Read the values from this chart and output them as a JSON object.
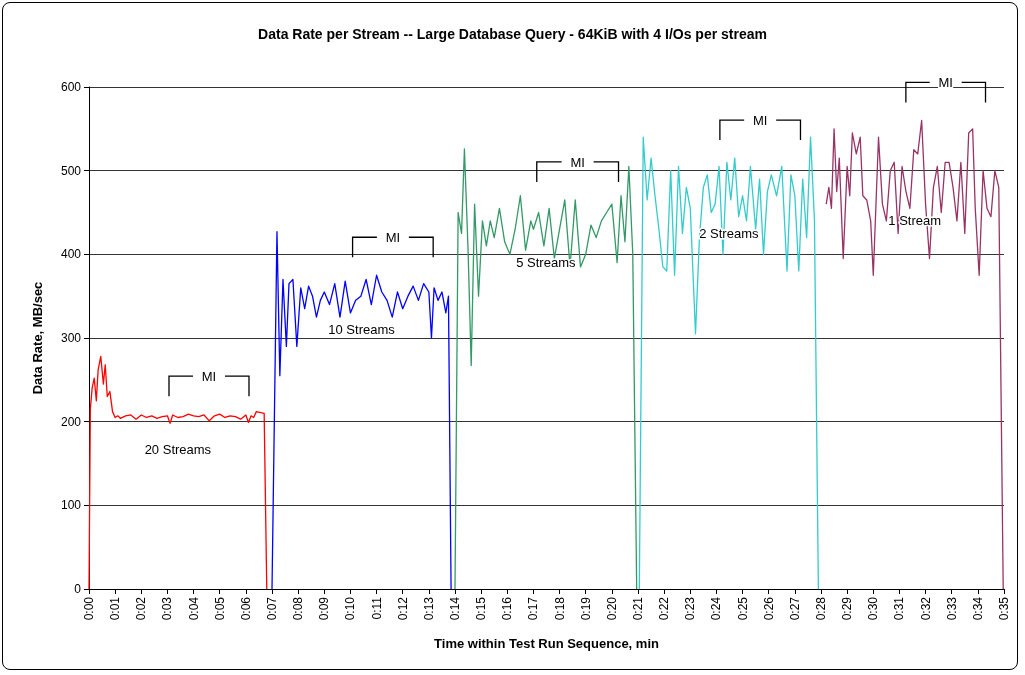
{
  "chart_data": {
    "type": "line",
    "title": "Data Rate per Stream -- Large Database Query - 64KiB with 4 I/Os per stream",
    "xlabel": "Time within Test Run Sequence, min",
    "ylabel": "Data Rate, MB/sec",
    "xlim": [
      0,
      35
    ],
    "ylim": [
      0,
      600
    ],
    "yticks": [
      0,
      100,
      200,
      300,
      400,
      500,
      600
    ],
    "xticks": [
      {
        "value": 0,
        "label": "0:00"
      },
      {
        "value": 1,
        "label": "0:01"
      },
      {
        "value": 2,
        "label": "0:02"
      },
      {
        "value": 3,
        "label": "0:03"
      },
      {
        "value": 4,
        "label": "0:04"
      },
      {
        "value": 5,
        "label": "0:05"
      },
      {
        "value": 6,
        "label": "0:06"
      },
      {
        "value": 7,
        "label": "0:07"
      },
      {
        "value": 8,
        "label": "0:08"
      },
      {
        "value": 9,
        "label": "0:09"
      },
      {
        "value": 10,
        "label": "0:10"
      },
      {
        "value": 11,
        "label": "0:11"
      },
      {
        "value": 12,
        "label": "0:12"
      },
      {
        "value": 13,
        "label": "0:13"
      },
      {
        "value": 14,
        "label": "0:14"
      },
      {
        "value": 15,
        "label": "0:15"
      },
      {
        "value": 16,
        "label": "0:16"
      },
      {
        "value": 17,
        "label": "0:17"
      },
      {
        "value": 18,
        "label": "0:18"
      },
      {
        "value": 19,
        "label": "0:19"
      },
      {
        "value": 20,
        "label": "0:20"
      },
      {
        "value": 21,
        "label": "0:21"
      },
      {
        "value": 22,
        "label": "0:22"
      },
      {
        "value": 23,
        "label": "0:23"
      },
      {
        "value": 24,
        "label": "0:24"
      },
      {
        "value": 25,
        "label": "0:25"
      },
      {
        "value": 26,
        "label": "0:26"
      },
      {
        "value": 27,
        "label": "0:27"
      },
      {
        "value": 28,
        "label": "0:28"
      },
      {
        "value": 29,
        "label": "0:29"
      },
      {
        "value": 30,
        "label": "0:30"
      },
      {
        "value": 31,
        "label": "0:31"
      },
      {
        "value": 32,
        "label": "0:32"
      },
      {
        "value": 33,
        "label": "0:33"
      },
      {
        "value": 34,
        "label": "0:34"
      },
      {
        "value": 35,
        "label": "0:35"
      }
    ],
    "grid": "y",
    "legend": false,
    "marker": "none",
    "line_style": "solid",
    "series": [
      {
        "name": "20 Streams",
        "color": "#ff0000",
        "x": [
          0,
          0.05,
          0.12,
          0.2,
          0.28,
          0.35,
          0.45,
          0.55,
          0.62,
          0.7,
          0.8,
          0.9,
          1.0,
          1.1,
          1.2,
          1.4,
          1.6,
          1.8,
          2.0,
          2.2,
          2.4,
          2.6,
          2.8,
          3.0,
          3.1,
          3.2,
          3.4,
          3.6,
          3.8,
          4.0,
          4.2,
          4.4,
          4.6,
          4.8,
          5.0,
          5.2,
          5.4,
          5.6,
          5.8,
          6.0,
          6.1,
          6.2,
          6.3,
          6.4,
          6.7,
          6.8
        ],
        "values": [
          0,
          215,
          240,
          252,
          225,
          262,
          278,
          245,
          268,
          230,
          236,
          212,
          205,
          207,
          204,
          207,
          208,
          203,
          208,
          205,
          207,
          204,
          206,
          207,
          198,
          208,
          205,
          206,
          209,
          207,
          206,
          208,
          201,
          207,
          209,
          205,
          207,
          206,
          203,
          208,
          199,
          207,
          205,
          212,
          210,
          0
        ]
      },
      {
        "name": "10 Streams",
        "color": "#0000ff",
        "x": [
          7.0,
          7.19,
          7.3,
          7.42,
          7.55,
          7.65,
          7.8,
          7.95,
          8.1,
          8.25,
          8.4,
          8.55,
          8.7,
          8.85,
          9.0,
          9.2,
          9.4,
          9.6,
          9.8,
          10.0,
          10.2,
          10.4,
          10.6,
          10.8,
          11.0,
          11.2,
          11.4,
          11.6,
          11.8,
          12.0,
          12.2,
          12.4,
          12.6,
          12.8,
          13.0,
          13.1,
          13.2,
          13.35,
          13.5,
          13.65,
          13.75,
          13.85
        ],
        "values": [
          0,
          427,
          255,
          370,
          290,
          365,
          370,
          290,
          360,
          335,
          362,
          350,
          325,
          345,
          355,
          340,
          365,
          325,
          368,
          330,
          345,
          350,
          370,
          340,
          375,
          355,
          345,
          325,
          355,
          335,
          350,
          362,
          345,
          365,
          355,
          300,
          360,
          345,
          355,
          330,
          350,
          0
        ]
      },
      {
        "name": "5 Streams",
        "color": "#339966",
        "x": [
          14.0,
          14.12,
          14.25,
          14.36,
          14.5,
          14.62,
          14.75,
          14.9,
          15.05,
          15.2,
          15.35,
          15.5,
          15.7,
          15.9,
          16.1,
          16.3,
          16.5,
          16.7,
          16.9,
          17.0,
          17.2,
          17.4,
          17.6,
          17.8,
          18.0,
          18.2,
          18.4,
          18.6,
          18.8,
          19.0,
          19.2,
          19.4,
          19.6,
          19.8,
          20.0,
          20.2,
          20.35,
          20.5,
          20.65,
          20.8,
          20.95
        ],
        "values": [
          0,
          450,
          425,
          526,
          405,
          267,
          460,
          350,
          440,
          410,
          440,
          420,
          455,
          415,
          400,
          430,
          470,
          405,
          440,
          430,
          450,
          410,
          455,
          395,
          430,
          465,
          385,
          465,
          385,
          400,
          435,
          420,
          440,
          450,
          460,
          390,
          470,
          415,
          505,
          400,
          0
        ]
      },
      {
        "name": "2 Streams",
        "color": "#33cccc",
        "x": [
          21.05,
          21.2,
          21.35,
          21.5,
          21.65,
          21.8,
          21.95,
          22.1,
          22.25,
          22.4,
          22.55,
          22.7,
          22.85,
          23.0,
          23.2,
          23.35,
          23.5,
          23.65,
          23.8,
          23.95,
          24.1,
          24.25,
          24.4,
          24.55,
          24.7,
          24.85,
          25.0,
          25.15,
          25.3,
          25.5,
          25.65,
          25.8,
          25.95,
          26.1,
          26.3,
          26.5,
          26.7,
          26.85,
          27.0,
          27.15,
          27.3,
          27.45,
          27.6,
          27.75,
          27.9
        ],
        "values": [
          0,
          540,
          465,
          515,
          470,
          430,
          385,
          380,
          500,
          375,
          505,
          425,
          480,
          455,
          305,
          420,
          480,
          495,
          450,
          460,
          505,
          400,
          510,
          465,
          515,
          445,
          470,
          440,
          505,
          430,
          490,
          400,
          475,
          495,
          470,
          505,
          380,
          495,
          470,
          380,
          490,
          420,
          540,
          440,
          0
        ]
      },
      {
        "name": "1 Stream",
        "color": "#993366",
        "x": [
          28.2,
          28.3,
          28.4,
          28.5,
          28.6,
          28.7,
          28.85,
          29.0,
          29.1,
          29.2,
          29.35,
          29.5,
          29.6,
          29.75,
          29.9,
          30.0,
          30.2,
          30.35,
          30.5,
          30.65,
          30.8,
          30.95,
          31.1,
          31.25,
          31.4,
          31.55,
          31.7,
          31.85,
          32.0,
          32.15,
          32.3,
          32.45,
          32.6,
          32.75,
          32.9,
          33.05,
          33.2,
          33.35,
          33.5,
          33.65,
          33.8,
          33.9,
          34.05,
          34.2,
          34.35,
          34.5,
          34.65,
          34.8,
          34.97
        ],
        "values": [
          460,
          480,
          455,
          550,
          475,
          515,
          395,
          505,
          470,
          545,
          520,
          540,
          470,
          465,
          440,
          375,
          540,
          460,
          440,
          500,
          510,
          425,
          505,
          475,
          455,
          525,
          520,
          560,
          460,
          395,
          480,
          505,
          450,
          510,
          510,
          480,
          440,
          510,
          425,
          545,
          550,
          455,
          375,
          500,
          455,
          445,
          500,
          480,
          0
        ]
      }
    ],
    "annotations": [
      "MI",
      "MI",
      "MI",
      "MI",
      "MI"
    ]
  }
}
